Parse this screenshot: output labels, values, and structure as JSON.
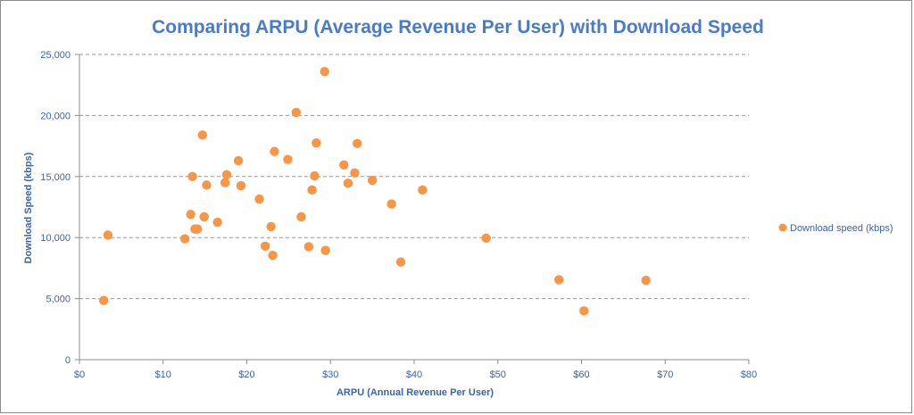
{
  "chart_data": {
    "type": "scatter",
    "title": "Comparing ARPU (Average Revenue Per User) with Download Speed",
    "xlabel": "ARPU (Annual Revenue Per User)",
    "ylabel": "Download Speed (kbps)",
    "xlim": [
      0,
      80
    ],
    "ylim": [
      0,
      25000
    ],
    "x_ticks": [
      0,
      10,
      20,
      30,
      40,
      50,
      60,
      70,
      80
    ],
    "x_tick_labels": [
      "$0",
      "$10",
      "$20",
      "$30",
      "$40",
      "$50",
      "$60",
      "$70",
      "$80"
    ],
    "y_ticks": [
      0,
      5000,
      10000,
      15000,
      20000,
      25000
    ],
    "y_tick_labels": [
      "0",
      "5,000",
      "10,000",
      "15,000",
      "20,000",
      "25,000"
    ],
    "grid": "horizontal-dashed",
    "legend_position": "right",
    "series": [
      {
        "name": "Download speed (kbps)",
        "color": "#f79646",
        "points": [
          [
            2.9,
            4850
          ],
          [
            3.4,
            10200
          ],
          [
            12.6,
            9900
          ],
          [
            13.3,
            11900
          ],
          [
            13.5,
            15000
          ],
          [
            13.8,
            10700
          ],
          [
            14.1,
            10700
          ],
          [
            14.7,
            18400
          ],
          [
            14.9,
            11700
          ],
          [
            15.2,
            14300
          ],
          [
            16.5,
            11250
          ],
          [
            17.4,
            14500
          ],
          [
            17.6,
            15150
          ],
          [
            19.0,
            16300
          ],
          [
            19.3,
            14250
          ],
          [
            21.5,
            13150
          ],
          [
            22.2,
            9300
          ],
          [
            22.9,
            10900
          ],
          [
            23.1,
            8550
          ],
          [
            23.3,
            17050
          ],
          [
            24.9,
            16400
          ],
          [
            25.9,
            20250
          ],
          [
            26.5,
            11700
          ],
          [
            27.4,
            9250
          ],
          [
            27.8,
            13900
          ],
          [
            28.1,
            15050
          ],
          [
            28.3,
            17750
          ],
          [
            29.3,
            23600
          ],
          [
            29.4,
            8950
          ],
          [
            31.6,
            15950
          ],
          [
            32.1,
            14450
          ],
          [
            32.9,
            15300
          ],
          [
            33.2,
            17700
          ],
          [
            35.0,
            14700
          ],
          [
            37.3,
            12750
          ],
          [
            38.4,
            8000
          ],
          [
            41.0,
            13900
          ],
          [
            48.6,
            9950
          ],
          [
            57.3,
            6550
          ],
          [
            60.3,
            4000
          ],
          [
            67.7,
            6500
          ]
        ]
      }
    ]
  }
}
